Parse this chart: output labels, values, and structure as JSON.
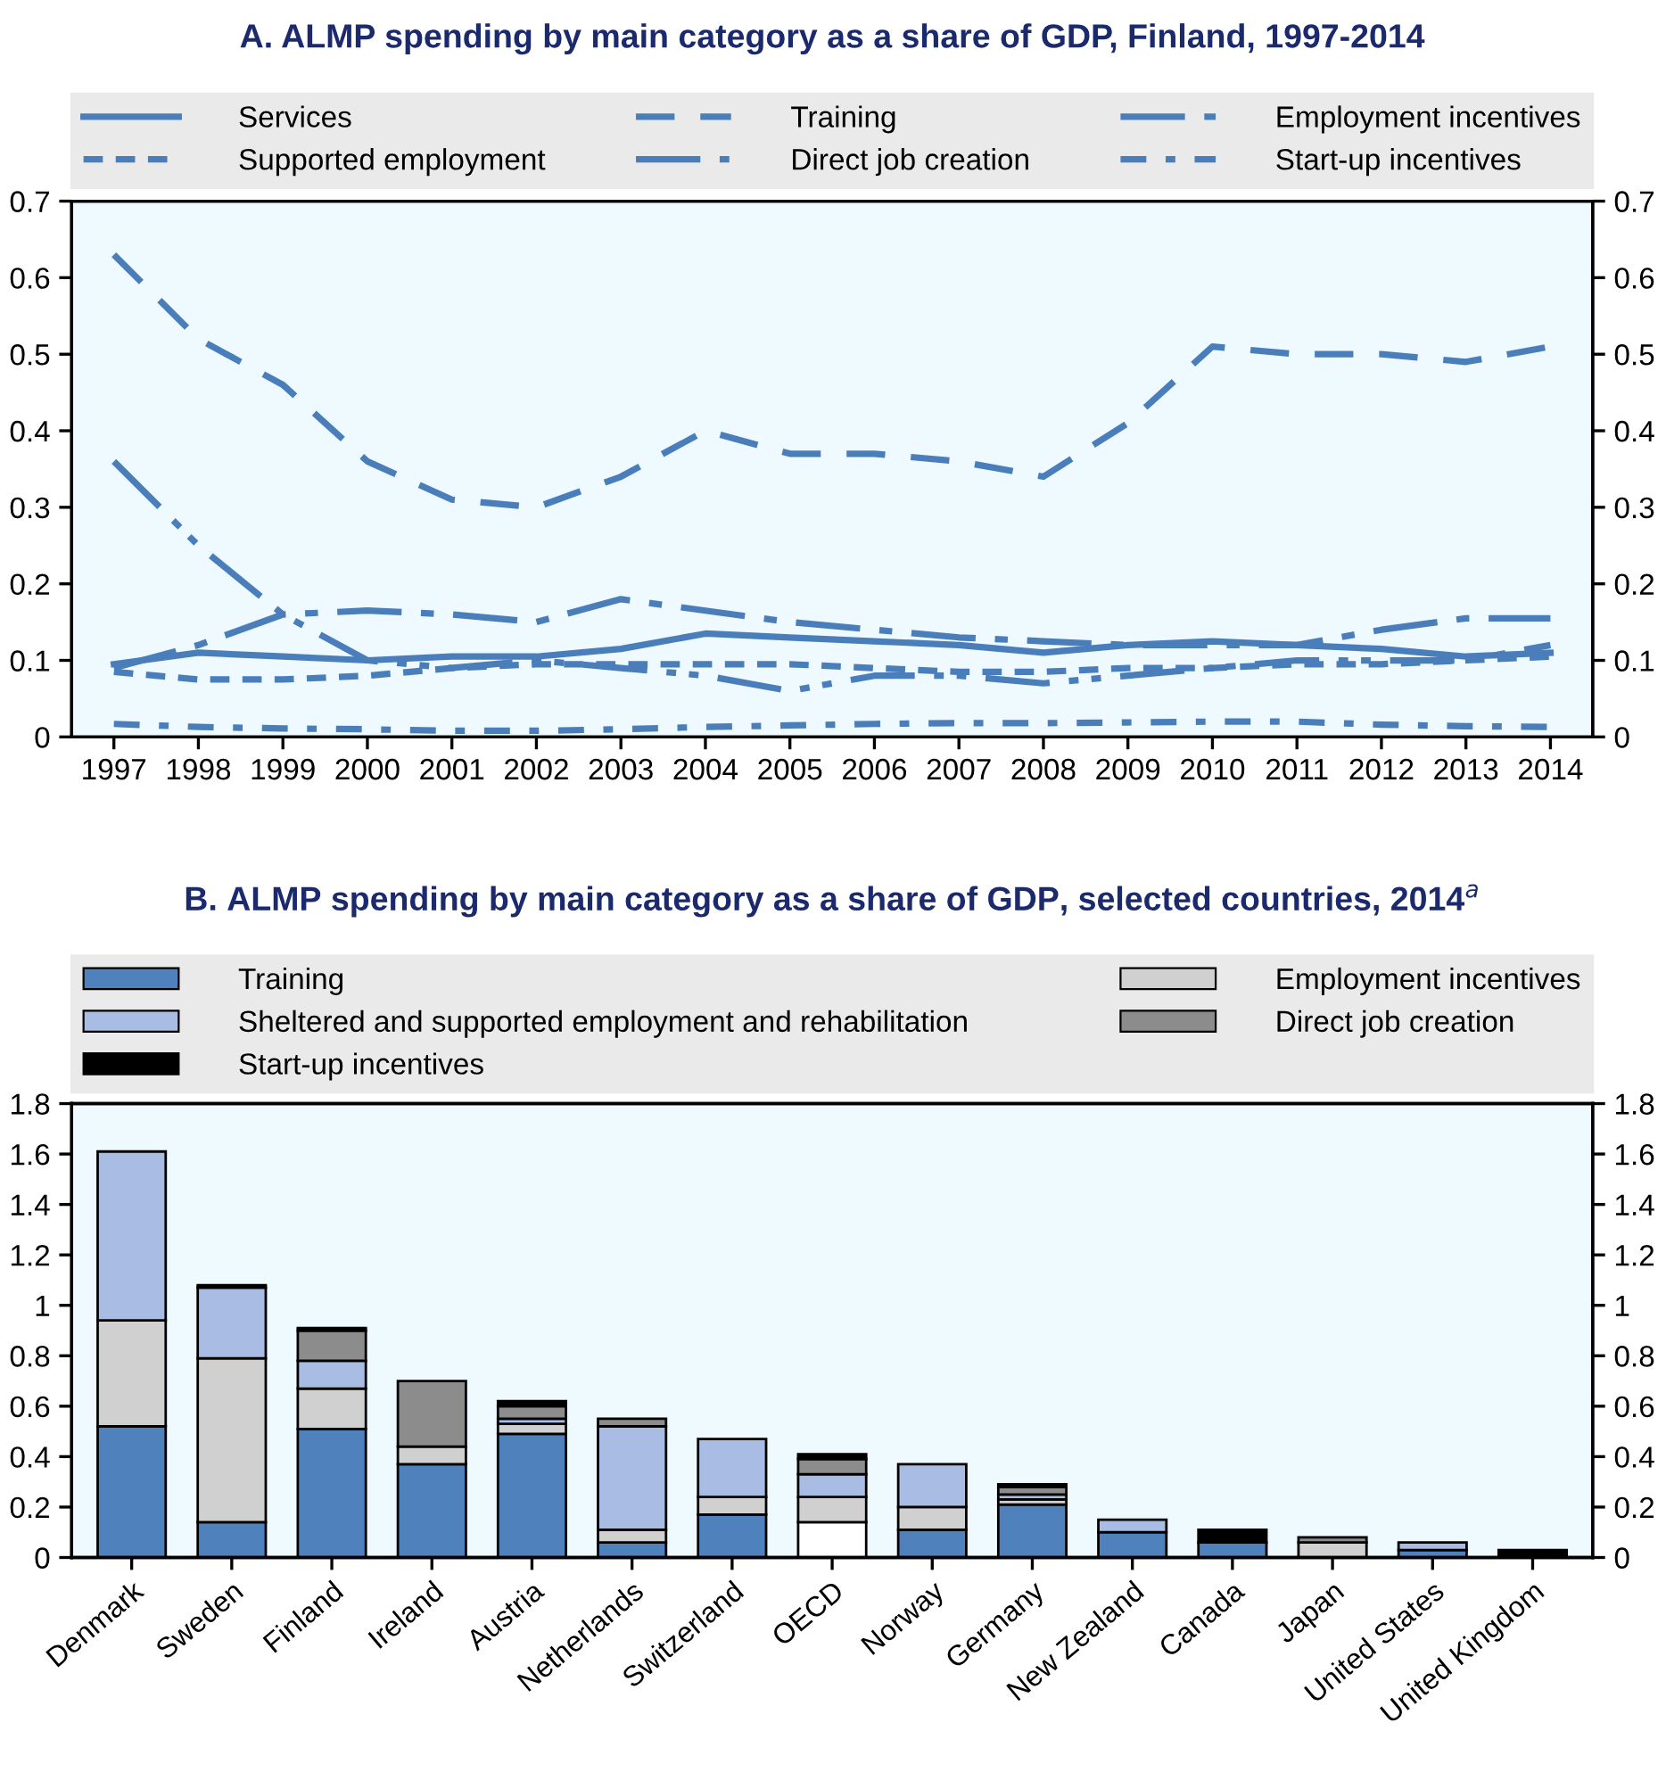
{
  "chart_data": [
    {
      "type": "line",
      "title": "A. ALMP spending by main category as a share of GDP, Finland, 1997-2014",
      "x": [
        1997,
        1998,
        1999,
        2000,
        2001,
        2002,
        2003,
        2004,
        2005,
        2006,
        2007,
        2008,
        2009,
        2010,
        2011,
        2012,
        2013,
        2014
      ],
      "xlim": [
        1996.5,
        2014.5
      ],
      "xticks": [
        1997,
        1998,
        1999,
        2000,
        2001,
        2002,
        2003,
        2004,
        2005,
        2006,
        2007,
        2008,
        2009,
        2010,
        2011,
        2012,
        2013,
        2014
      ],
      "ylim": [
        0,
        0.7
      ],
      "yticks": [
        0,
        0.1,
        0.2,
        0.3,
        0.4,
        0.5,
        0.6,
        0.7
      ],
      "y2lim": [
        0,
        0.7
      ],
      "y2ticks": [
        0,
        0.1,
        0.2,
        0.3,
        0.4,
        0.5,
        0.6,
        0.7
      ],
      "legend": "top",
      "grid": false,
      "marker": "none",
      "series": [
        {
          "name": "Services",
          "color": "#4a7ebb",
          "line_style": "solid",
          "values": [
            0.095,
            0.11,
            0.105,
            0.1,
            0.105,
            0.105,
            0.115,
            0.135,
            0.13,
            0.125,
            0.12,
            0.11,
            0.12,
            0.125,
            0.12,
            0.115,
            0.105,
            0.11
          ]
        },
        {
          "name": "Training",
          "color": "#4a7ebb",
          "line_style": "dashed",
          "values": [
            0.63,
            0.52,
            0.46,
            0.36,
            0.31,
            0.3,
            0.34,
            0.4,
            0.37,
            0.37,
            0.36,
            0.34,
            0.41,
            0.51,
            0.5,
            0.5,
            0.49,
            0.51
          ]
        },
        {
          "name": "Employment incentives",
          "color": "#4a7ebb",
          "line_style": "dashdot",
          "values": [
            0.09,
            0.12,
            0.16,
            0.165,
            0.16,
            0.15,
            0.18,
            0.165,
            0.15,
            0.14,
            0.13,
            0.125,
            0.12,
            0.12,
            0.12,
            0.14,
            0.155,
            0.155
          ]
        },
        {
          "name": "Supported employment",
          "color": "#4a7ebb",
          "line_style": "dotted",
          "values": [
            0.085,
            0.075,
            0.075,
            0.08,
            0.09,
            0.095,
            0.095,
            0.095,
            0.095,
            0.09,
            0.085,
            0.085,
            0.09,
            0.09,
            0.095,
            0.095,
            0.1,
            0.105
          ]
        },
        {
          "name": "Direct job creation",
          "color": "#4a7ebb",
          "line_style": "dashdotdot",
          "values": [
            0.36,
            0.25,
            0.16,
            0.1,
            0.09,
            0.1,
            0.09,
            0.08,
            0.06,
            0.08,
            0.08,
            0.07,
            0.08,
            0.09,
            0.1,
            0.1,
            0.1,
            0.12
          ]
        },
        {
          "name": "Start-up incentives",
          "color": "#4a7ebb",
          "line_style": "loosedashdot",
          "values": [
            0.017,
            0.013,
            0.011,
            0.01,
            0.008,
            0.008,
            0.01,
            0.013,
            0.015,
            0.017,
            0.018,
            0.018,
            0.019,
            0.02,
            0.02,
            0.016,
            0.014,
            0.013
          ]
        }
      ]
    },
    {
      "type": "bar",
      "stacked": true,
      "title": "B. ALMP spending by main category as a share of GDP, selected countries, 2014$^{a}$",
      "categories": [
        "Denmark",
        "Sweden",
        "Finland",
        "Ireland",
        "Austria",
        "Netherlands",
        "Switzerland",
        "OECD",
        "Norway",
        "Germany",
        "New Zealand",
        "Canada",
        "Japan",
        "United States",
        "United Kingdom"
      ],
      "ylim": [
        0,
        1.8
      ],
      "yticks": [
        0,
        0.2,
        0.4,
        0.6,
        0.8,
        1,
        1.2,
        1.4,
        1.6,
        1.8
      ],
      "y2lim": [
        0,
        1.8
      ],
      "y2ticks": [
        0,
        0.2,
        0.4,
        0.6,
        0.8,
        1,
        1.2,
        1.4,
        1.6,
        1.8
      ],
      "legend": "top",
      "grid": false,
      "series": [
        {
          "name": "Training",
          "color": "#4f81bd",
          "colors": [
            "#4f81bd",
            "#4f81bd",
            "#4f81bd",
            "#4f81bd",
            "#4f81bd",
            "#4f81bd",
            "#4f81bd",
            "#ffffff",
            "#4f81bd",
            "#4f81bd",
            "#4f81bd",
            "#4f81bd",
            "#4f81bd",
            "#4f81bd",
            "#4f81bd"
          ],
          "values": [
            0.52,
            0.14,
            0.51,
            0.37,
            0.49,
            0.06,
            0.17,
            0.14,
            0.11,
            0.21,
            0.1,
            0.06,
            null,
            0.03,
            null
          ]
        },
        {
          "name": "Employment incentives",
          "color": "#d0d0d0",
          "values": [
            0.42,
            0.65,
            0.16,
            0.07,
            0.04,
            0.05,
            0.07,
            0.1,
            0.09,
            0.02,
            null,
            null,
            0.06,
            null,
            null
          ]
        },
        {
          "name": "Sheltered and supported employment and rehabilitation",
          "color": "#a9bce3",
          "values": [
            0.67,
            0.28,
            0.11,
            null,
            0.02,
            0.41,
            0.23,
            0.09,
            0.17,
            0.02,
            0.05,
            null,
            null,
            0.03,
            null
          ]
        },
        {
          "name": "Direct job creation",
          "color": "#8c8c8c",
          "values": [
            null,
            null,
            0.12,
            0.26,
            0.05,
            0.03,
            null,
            0.06,
            null,
            0.03,
            null,
            null,
            0.02,
            null,
            null
          ]
        },
        {
          "name": "Start-up incentives",
          "color": "#000000",
          "values": [
            null,
            0.01,
            0.01,
            null,
            0.02,
            null,
            null,
            0.02,
            null,
            0.01,
            null,
            0.05,
            null,
            null,
            0.03
          ]
        }
      ]
    }
  ]
}
